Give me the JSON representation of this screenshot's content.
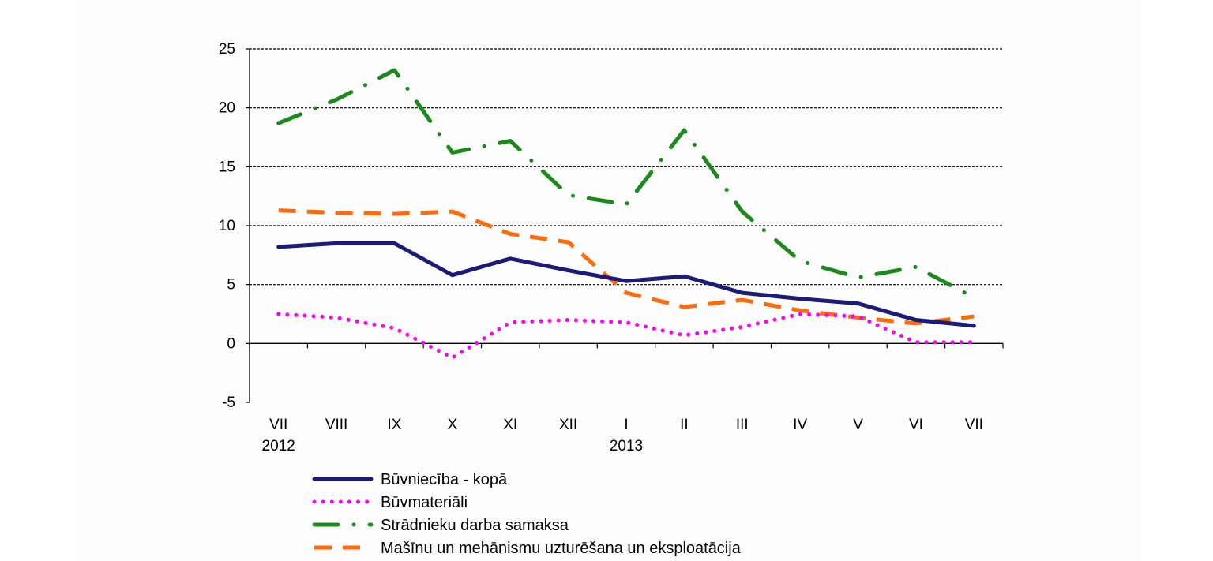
{
  "chart_data": {
    "type": "line",
    "x": [
      "VII",
      "VIII",
      "IX",
      "X",
      "XI",
      "XII",
      "I",
      "II",
      "III",
      "IV",
      "V",
      "VI",
      "VII"
    ],
    "year_labels": [
      {
        "index": 0,
        "label": "2012"
      },
      {
        "index": 6,
        "label": "2013"
      }
    ],
    "ylim": [
      -5,
      25
    ],
    "yticks": [
      -5,
      0,
      5,
      10,
      15,
      20,
      25
    ],
    "grid": true,
    "legend_position": "bottom",
    "series": [
      {
        "name": "Būvniecība - kopā",
        "color": "#1b1b7a",
        "style": "solid",
        "values": [
          8.2,
          8.5,
          8.5,
          5.8,
          7.2,
          6.2,
          5.3,
          5.7,
          4.3,
          3.8,
          3.4,
          2.0,
          1.5
        ]
      },
      {
        "name": "Būvmateriāli",
        "color": "#ff00ff",
        "style": "dotted",
        "values": [
          2.5,
          2.2,
          1.3,
          -1.2,
          1.8,
          2.0,
          1.8,
          0.7,
          1.4,
          2.5,
          2.3,
          0.1,
          0.1
        ]
      },
      {
        "name": "Strādnieku darba samaksa",
        "color": "#1a8a1a",
        "style": "dashdot",
        "values": [
          18.7,
          20.7,
          23.2,
          16.2,
          17.2,
          12.6,
          11.8,
          18.1,
          11.2,
          7.0,
          5.6,
          6.5,
          3.9
        ]
      },
      {
        "name": "Mašīnu un mehānismu uzturēšana un eksploatācija",
        "color": "#ff6a0a",
        "style": "dashed",
        "values": [
          11.3,
          11.1,
          11.0,
          11.2,
          9.3,
          8.6,
          4.3,
          3.1,
          3.7,
          2.8,
          2.2,
          1.7,
          2.3
        ]
      }
    ]
  }
}
